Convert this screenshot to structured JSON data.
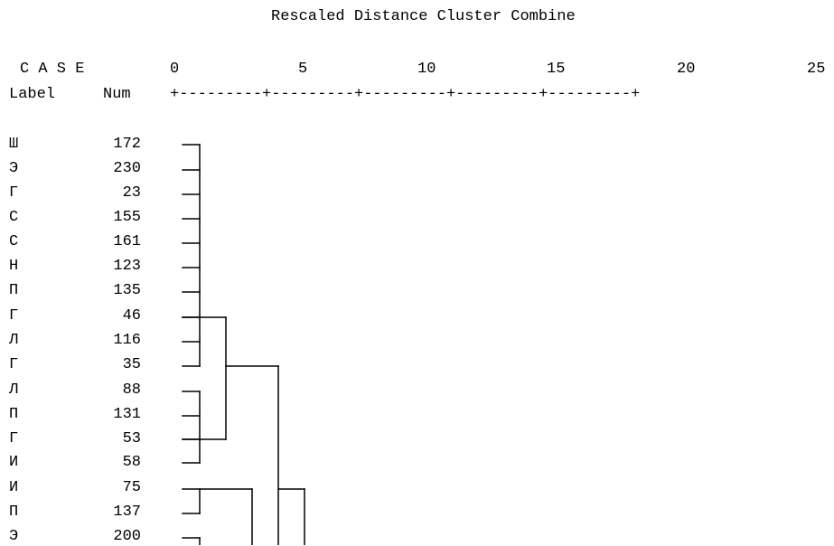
{
  "title": "Rescaled Distance Cluster Combine",
  "header": {
    "case": "C A S E",
    "label": "Label",
    "num": "Num",
    "scale_line": "+---------+---------+---------+---------+---------+"
  },
  "scale": {
    "ticks": [
      "0",
      "5",
      "10",
      "15",
      "20",
      "25"
    ]
  },
  "cases": [
    {
      "label": "Ш",
      "num": "172"
    },
    {
      "label": "Э",
      "num": "230"
    },
    {
      "label": "Г",
      "num": "23"
    },
    {
      "label": "С",
      "num": "155"
    },
    {
      "label": "С",
      "num": "161"
    },
    {
      "label": "Н",
      "num": "123"
    },
    {
      "label": "П",
      "num": "135"
    },
    {
      "label": "Г",
      "num": "46"
    },
    {
      "label": "Л",
      "num": "116"
    },
    {
      "label": "Г",
      "num": "35"
    },
    {
      "label": "Л",
      "num": "88"
    },
    {
      "label": "П",
      "num": "131"
    },
    {
      "label": "Г",
      "num": "53"
    },
    {
      "label": "И",
      "num": "58"
    },
    {
      "label": "И",
      "num": "75"
    },
    {
      "label": "П",
      "num": "137"
    },
    {
      "label": "Э",
      "num": "200"
    }
  ],
  "colors": {
    "background": "#ffffff",
    "text": "#000000",
    "lines": "#000000"
  }
}
